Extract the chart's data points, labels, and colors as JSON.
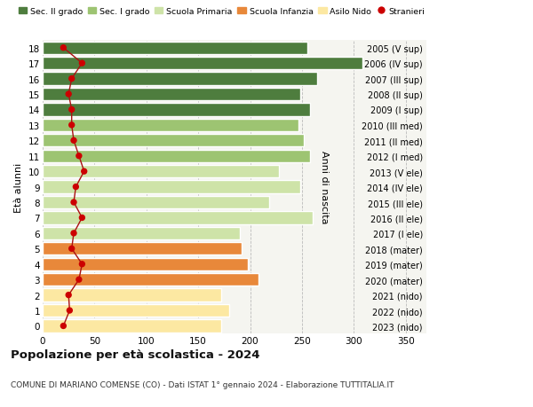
{
  "ages": [
    0,
    1,
    2,
    3,
    4,
    5,
    6,
    7,
    8,
    9,
    10,
    11,
    12,
    13,
    14,
    15,
    16,
    17,
    18
  ],
  "bar_values": [
    172,
    180,
    172,
    208,
    198,
    192,
    190,
    260,
    218,
    248,
    228,
    258,
    252,
    247,
    258,
    248,
    265,
    308,
    255
  ],
  "bar_colors": [
    "#fce8a2",
    "#fce8a2",
    "#fce8a2",
    "#e8883a",
    "#e8883a",
    "#e8883a",
    "#cee3a8",
    "#cee3a8",
    "#cee3a8",
    "#cee3a8",
    "#cee3a8",
    "#9dc472",
    "#9dc472",
    "#9dc472",
    "#4e7d3e",
    "#4e7d3e",
    "#4e7d3e",
    "#4e7d3e",
    "#4e7d3e"
  ],
  "stranieri_values": [
    20,
    26,
    25,
    35,
    38,
    28,
    30,
    38,
    30,
    32,
    40,
    35,
    30,
    28,
    28,
    25,
    28,
    38,
    20
  ],
  "right_labels": [
    "2023 (nido)",
    "2022 (nido)",
    "2021 (nido)",
    "2020 (mater)",
    "2019 (mater)",
    "2018 (mater)",
    "2017 (I ele)",
    "2016 (II ele)",
    "2015 (III ele)",
    "2014 (IV ele)",
    "2013 (V ele)",
    "2012 (I med)",
    "2011 (II med)",
    "2010 (III med)",
    "2009 (I sup)",
    "2008 (II sup)",
    "2007 (III sup)",
    "2006 (IV sup)",
    "2005 (V sup)"
  ],
  "ylabel_left": "Età alunni",
  "ylabel_right": "Anni di nascita",
  "title": "Popolazione per età scolastica - 2024",
  "subtitle": "COMUNE DI MARIANO COMENSE (CO) - Dati ISTAT 1° gennaio 2024 - Elaborazione TUTTITALIA.IT",
  "xlim": [
    0,
    370
  ],
  "xticks": [
    0,
    50,
    100,
    150,
    200,
    250,
    300,
    350
  ],
  "legend_labels": [
    "Sec. II grado",
    "Sec. I grado",
    "Scuola Primaria",
    "Scuola Infanzia",
    "Asilo Nido",
    "Stranieri"
  ],
  "legend_colors": [
    "#4e7d3e",
    "#9dc472",
    "#cee3a8",
    "#e8883a",
    "#fce8a2",
    "#cc0000"
  ],
  "plot_bg": "#f5f5f0",
  "bar_height": 0.82
}
